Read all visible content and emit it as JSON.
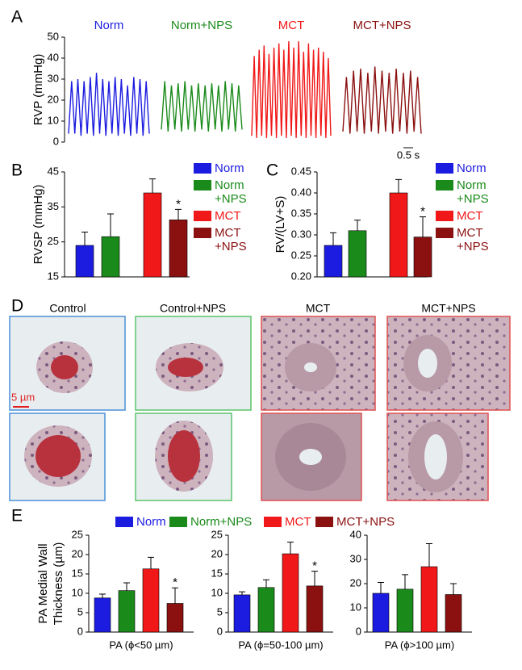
{
  "panel_labels": [
    "A",
    "B",
    "C",
    "D",
    "E"
  ],
  "chart_data": [
    {
      "type": "line",
      "ylabel": "RVP (mmHg)",
      "ylim": [
        0,
        50
      ],
      "yticks": [
        0,
        10,
        20,
        30,
        40,
        50
      ],
      "scale_bar": "0.5 s",
      "series": [
        {
          "name": "Norm",
          "color": "#1c1ce0",
          "values": [
            4,
            29,
            4,
            30,
            3,
            29,
            4,
            31,
            3,
            33,
            4,
            30,
            3,
            29,
            4,
            31,
            3,
            30,
            4,
            27,
            3,
            31,
            4,
            30,
            3,
            29,
            4
          ]
        },
        {
          "name": "Norm+NPS",
          "color": "#1a8a1a",
          "values": [
            6,
            29,
            5,
            27,
            6,
            28,
            5,
            29,
            6,
            27,
            5,
            28,
            6,
            27,
            5,
            28,
            6,
            27,
            5,
            29,
            6,
            28,
            5,
            27,
            6
          ]
        },
        {
          "name": "MCT",
          "color": "#f01818",
          "values": [
            3,
            41,
            2,
            44,
            3,
            46,
            2,
            42,
            3,
            45,
            2,
            47,
            3,
            44,
            2,
            48,
            3,
            45,
            2,
            48,
            3,
            43,
            2,
            47,
            3,
            44,
            2,
            45,
            3,
            43,
            2,
            40,
            3
          ]
        },
        {
          "name": "MCT+NPS",
          "color": "#8b1010",
          "values": [
            5,
            31,
            4,
            34,
            5,
            35,
            4,
            33,
            5,
            36,
            4,
            34,
            5,
            33,
            4,
            35,
            5,
            33,
            4,
            34,
            5,
            31,
            4
          ]
        }
      ]
    },
    {
      "type": "bar",
      "ylabel": "RVSP (mmHg)",
      "ylim": [
        15,
        45
      ],
      "yticks": [
        15,
        25,
        35,
        45
      ],
      "categories": [
        "Norm",
        "Norm +NPS",
        "MCT",
        "MCT +NPS"
      ],
      "colors": [
        "#1c1ce0",
        "#1a8a1a",
        "#f01818",
        "#8b1010"
      ],
      "values": [
        24,
        26.5,
        39,
        31.3
      ],
      "errors": [
        3.8,
        6.5,
        4,
        3
      ],
      "significance": [
        null,
        null,
        null,
        "*"
      ]
    },
    {
      "type": "bar",
      "ylabel": "RV/(LV+S)",
      "ylim": [
        0.2,
        0.45
      ],
      "yticks": [
        {
          "value": 0.2,
          "label": "0.20"
        },
        {
          "value": 0.25,
          "label": "0.25"
        },
        {
          "value": 0.3,
          "label": "0.30"
        },
        {
          "value": 0.35,
          "label": "0.35"
        },
        {
          "value": 0.4,
          "label": "0.40"
        },
        {
          "value": 0.45,
          "label": "0.45"
        }
      ],
      "categories": [
        "Norm",
        "Norm +NPS",
        "MCT",
        "MCT +NPS"
      ],
      "colors": [
        "#1c1ce0",
        "#1a8a1a",
        "#f01818",
        "#8b1010"
      ],
      "values": [
        0.275,
        0.31,
        0.4,
        0.295
      ],
      "errors": [
        0.03,
        0.025,
        0.032,
        0.048
      ],
      "significance": [
        null,
        null,
        null,
        "*"
      ]
    },
    {
      "type": "bar",
      "xlabel": "PA (ϕ<50 µm)",
      "ylim": [
        0,
        25
      ],
      "yticks": [
        0,
        5,
        10,
        15,
        20,
        25
      ],
      "values": [
        8.8,
        10.7,
        16.3,
        7.4
      ],
      "errors": [
        1,
        2,
        3,
        4
      ],
      "significance": [
        null,
        null,
        null,
        "*"
      ]
    },
    {
      "type": "bar",
      "xlabel": "PA (ϕ=50-100 µm)",
      "ylim": [
        0,
        25
      ],
      "yticks": [
        0,
        5,
        10,
        15,
        20,
        25
      ],
      "values": [
        9.6,
        11.5,
        20.2,
        11.9
      ],
      "errors": [
        0.8,
        2,
        3,
        3.8
      ],
      "significance": [
        null,
        null,
        null,
        "*"
      ]
    },
    {
      "type": "bar",
      "xlabel": "PA (ϕ>100 µm)",
      "ylim": [
        0,
        40
      ],
      "yticks": [
        0,
        10,
        20,
        30,
        40
      ],
      "values": [
        16,
        17.7,
        27,
        15.5
      ],
      "errors": [
        4.5,
        6,
        9.5,
        4.5
      ],
      "significance": [
        null,
        null,
        null,
        null
      ]
    }
  ],
  "micrographs": {
    "titles": [
      "Control",
      "Control+NPS",
      "MCT",
      "MCT+NPS"
    ],
    "scale_bar": "5 µm"
  },
  "shared_legend": [
    {
      "name": "Norm",
      "color": "#1c1ce0"
    },
    {
      "name": "Norm+NPS",
      "color": "#1a8a1a"
    },
    {
      "name": "MCT",
      "color": "#f01818"
    },
    {
      "name": "MCT+NPS",
      "color": "#8b1010"
    }
  ],
  "shared_ylabel": "PA Medial Wall Thickness (µm)"
}
